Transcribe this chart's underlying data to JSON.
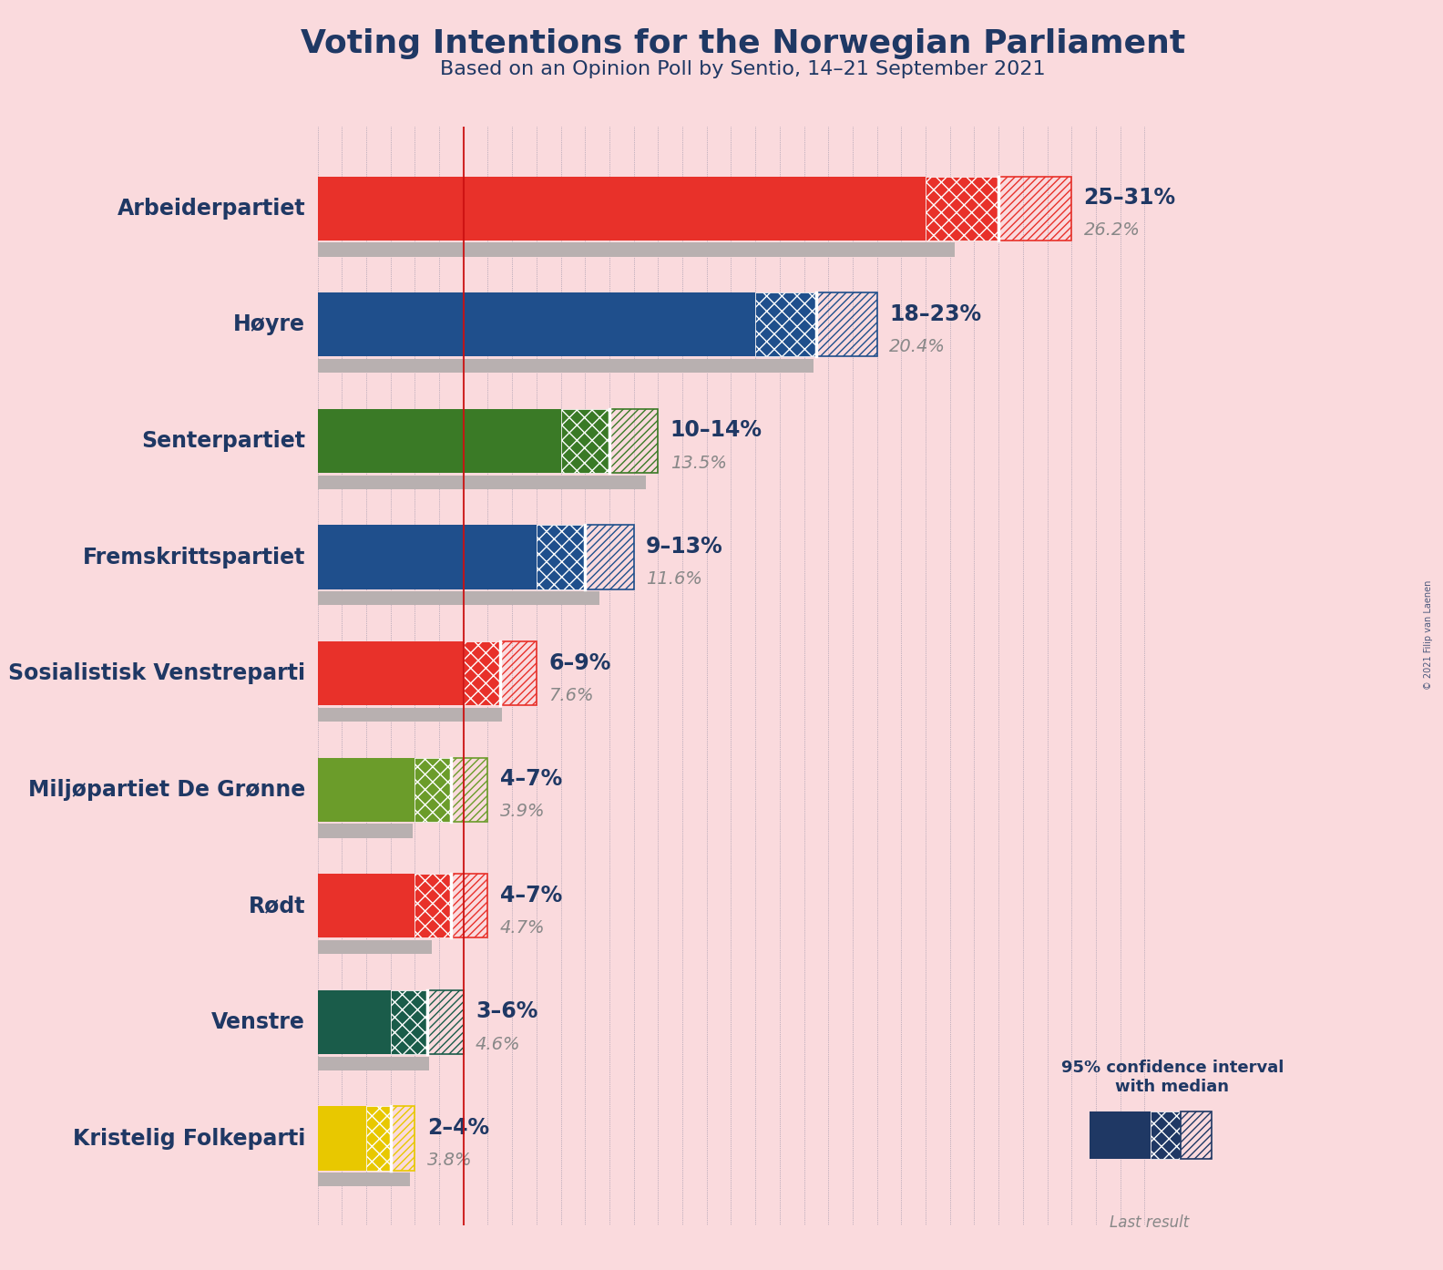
{
  "title": "Voting Intentions for the Norwegian Parliament",
  "subtitle": "Based on an Opinion Poll by Sentio, 14–21 September 2021",
  "copyright": "© 2021 Filip van Laenen",
  "bg": "#fadadd",
  "navy": "#1f3864",
  "grey_last": "#b8b0b0",
  "red_line_color": "#cc1111",
  "red_line_x": 6.0,
  "x_max": 35,
  "bar_height": 0.55,
  "last_bar_height": 0.12,
  "title_fontsize": 26,
  "subtitle_fontsize": 16,
  "label_fontsize": 17,
  "range_fontsize": 17,
  "last_val_fontsize": 14,
  "legend_label": "95% confidence interval\nwith median",
  "last_result_label": "Last result",
  "parties": [
    {
      "name": "Arbeiderpartiet",
      "color": "#e8312a",
      "low": 25,
      "high": 31,
      "median": 28,
      "last": 26.2,
      "range": "25–31%",
      "last_str": "26.2%"
    },
    {
      "name": "Høyre",
      "color": "#1f4f8c",
      "low": 18,
      "high": 23,
      "median": 20.5,
      "last": 20.4,
      "range": "18–23%",
      "last_str": "20.4%"
    },
    {
      "name": "Senterpartiet",
      "color": "#3a7a26",
      "low": 10,
      "high": 14,
      "median": 12,
      "last": 13.5,
      "range": "10–14%",
      "last_str": "13.5%"
    },
    {
      "name": "Fremskrittspartiet",
      "color": "#1f4f8c",
      "low": 9,
      "high": 13,
      "median": 11,
      "last": 11.6,
      "range": "9–13%",
      "last_str": "11.6%"
    },
    {
      "name": "Sosialistisk Venstreparti",
      "color": "#e8312a",
      "low": 6,
      "high": 9,
      "median": 7.5,
      "last": 7.6,
      "range": "6–9%",
      "last_str": "7.6%"
    },
    {
      "name": "Miljøpartiet De Grønne",
      "color": "#6b9c2a",
      "low": 4,
      "high": 7,
      "median": 5.5,
      "last": 3.9,
      "range": "4–7%",
      "last_str": "3.9%"
    },
    {
      "name": "Rødt",
      "color": "#e8312a",
      "low": 4,
      "high": 7,
      "median": 5.5,
      "last": 4.7,
      "range": "4–7%",
      "last_str": "4.7%"
    },
    {
      "name": "Venstre",
      "color": "#1a5c4a",
      "low": 3,
      "high": 6,
      "median": 4.5,
      "last": 4.6,
      "range": "3–6%",
      "last_str": "4.6%"
    },
    {
      "name": "Kristelig Folkeparti",
      "color": "#e8c800",
      "low": 2,
      "high": 4,
      "median": 3,
      "last": 3.8,
      "range": "2–4%",
      "last_str": "3.8%"
    }
  ]
}
